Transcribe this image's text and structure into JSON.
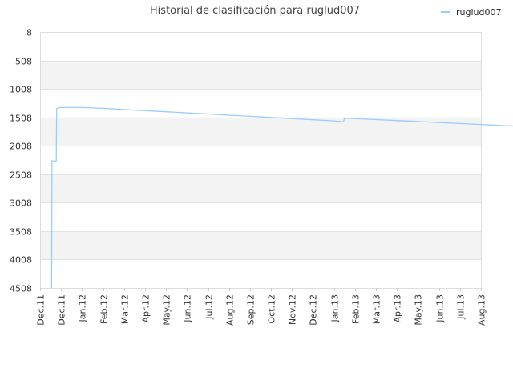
{
  "chart_data": {
    "type": "line",
    "title": "Historial de clasificación para ruglud007",
    "xlabel": "",
    "ylabel": "",
    "y_reversed": true,
    "grid": true,
    "legend_position": "top-right",
    "ylim": [
      8,
      4508
    ],
    "y_ticks": [
      "8",
      "508",
      "1008",
      "1508",
      "2008",
      "2508",
      "3008",
      "3508",
      "4008",
      "4508"
    ],
    "x_ticks": [
      "Dec.11",
      "Dec.11",
      "Jan.12",
      "Feb.12",
      "Mar.12",
      "Apr.12",
      "May.12",
      "Jun.12",
      "Jul.12",
      "Aug.12",
      "Sep.12",
      "Oct.12",
      "Nov.12",
      "Dec.12",
      "Jan.13",
      "Feb.13",
      "Mar.13",
      "Apr.13",
      "May.13",
      "Jun.13",
      "Jul.13",
      "Aug.13"
    ],
    "series": [
      {
        "name": "ruglud007",
        "color": "#99ccff",
        "points": [
          {
            "x": 0.55,
            "y": 4508
          },
          {
            "x": 0.57,
            "y": 2270
          },
          {
            "x": 0.77,
            "y": 2280
          },
          {
            "x": 0.79,
            "y": 1360
          },
          {
            "x": 0.9,
            "y": 1335
          },
          {
            "x": 2.0,
            "y": 1335
          },
          {
            "x": 3.0,
            "y": 1350
          },
          {
            "x": 4.0,
            "y": 1370
          },
          {
            "x": 5.0,
            "y": 1390
          },
          {
            "x": 6.0,
            "y": 1410
          },
          {
            "x": 7.0,
            "y": 1430
          },
          {
            "x": 8.0,
            "y": 1450
          },
          {
            "x": 9.0,
            "y": 1470
          },
          {
            "x": 10.0,
            "y": 1490
          },
          {
            "x": 11.0,
            "y": 1510
          },
          {
            "x": 12.0,
            "y": 1530
          },
          {
            "x": 13.0,
            "y": 1550
          },
          {
            "x": 14.0,
            "y": 1570
          },
          {
            "x": 14.45,
            "y": 1585
          },
          {
            "x": 14.5,
            "y": 1525
          },
          {
            "x": 15.0,
            "y": 1530
          },
          {
            "x": 16.0,
            "y": 1548
          },
          {
            "x": 17.0,
            "y": 1565
          },
          {
            "x": 18.0,
            "y": 1582
          },
          {
            "x": 19.0,
            "y": 1600
          },
          {
            "x": 20.0,
            "y": 1617
          },
          {
            "x": 21.0,
            "y": 1635
          },
          {
            "x": 22.0,
            "y": 1652
          },
          {
            "x": 23.0,
            "y": 1670
          },
          {
            "x": 24.0,
            "y": 1688
          },
          {
            "x": 25.0,
            "y": 1705
          },
          {
            "x": 26.0,
            "y": 1722
          },
          {
            "x": 26.3,
            "y": 1727
          }
        ]
      }
    ]
  }
}
